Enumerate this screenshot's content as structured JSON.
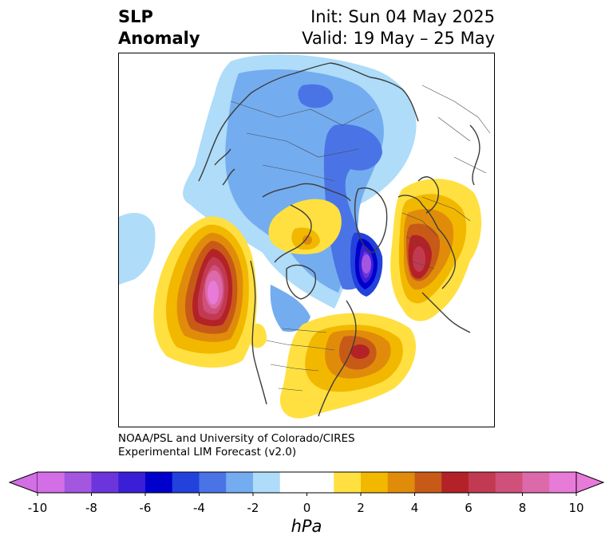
{
  "title": {
    "left_line1": "SLP",
    "left_line2": "Anomaly",
    "right_line1": "Init: Sun 04 May 2025",
    "right_line2": "Valid: 19 May – 25 May"
  },
  "credit": {
    "line1": "NOAA/PSL and University of Colorado/CIRES",
    "line2": "Experimental LIM Forecast (v2.0)"
  },
  "colorbar": {
    "units": "hPa",
    "tick_labels": [
      "-10",
      "-8",
      "-6",
      "-4",
      "-2",
      "0",
      "2",
      "4",
      "6",
      "8",
      "10"
    ],
    "colors": [
      "#d36ee6",
      "#a356e0",
      "#6c35dc",
      "#3a1fd6",
      "#0000cc",
      "#2342dc",
      "#4a74e5",
      "#74acf0",
      "#aedcf9",
      "#ffffff",
      "#ffffff",
      "#ffe040",
      "#f2b800",
      "#e08c0a",
      "#c85a18",
      "#b32226",
      "#c23a52",
      "#d0507c",
      "#dc6aaa",
      "#e87ad8"
    ]
  }
}
